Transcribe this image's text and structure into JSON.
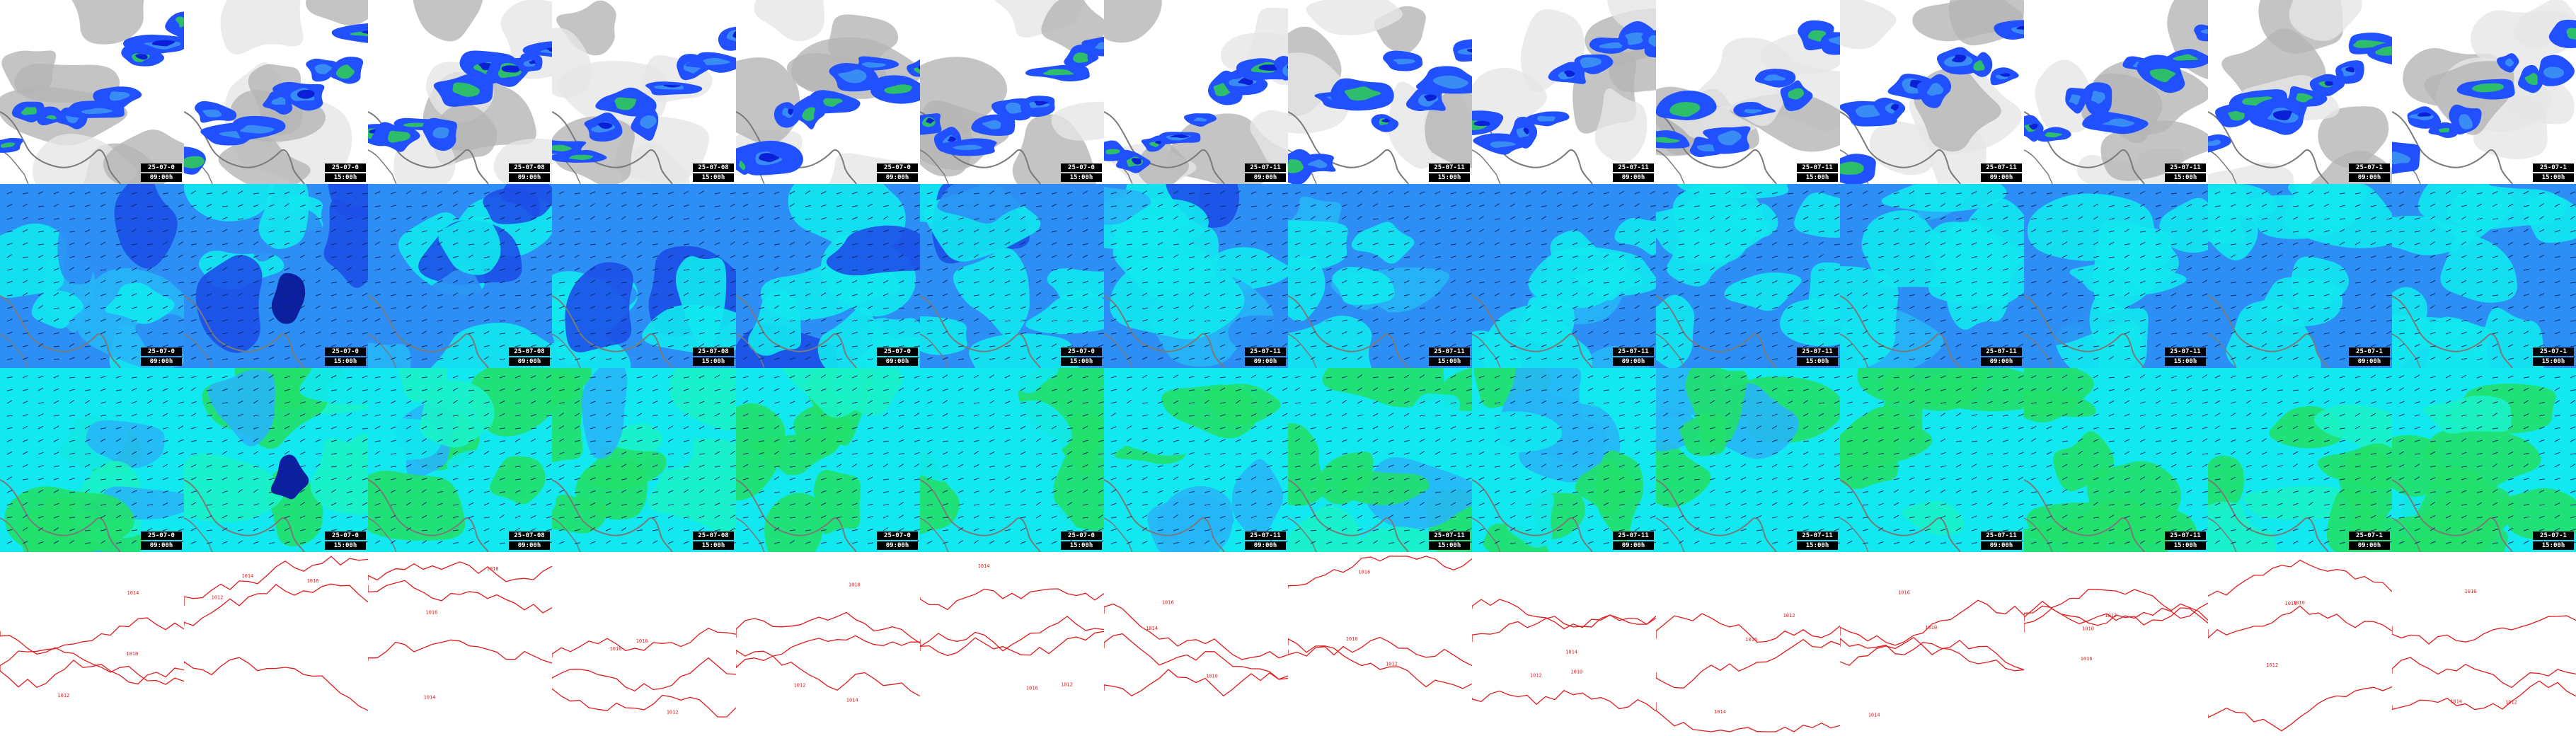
{
  "rows": [
    "precipitation",
    "wind-speed-upper",
    "wind-speed-lower",
    "pressure-contours"
  ],
  "frames": [
    {
      "date": "25-07-0",
      "time": "09:00h"
    },
    {
      "date": "25-07-0",
      "time": "15:00h"
    },
    {
      "date": "25-07-08",
      "time": "09:00h"
    },
    {
      "date": "25-07-08",
      "time": "15:00h"
    },
    {
      "date": "25-07-0",
      "time": "09:00h"
    },
    {
      "date": "25-07-0",
      "time": "15:00h"
    },
    {
      "date": "25-07-11",
      "time": "09:00h"
    },
    {
      "date": "25-07-11",
      "time": "15:00h"
    },
    {
      "date": "25-07-11",
      "time": "09:00h"
    },
    {
      "date": "25-07-11",
      "time": "15:00h"
    },
    {
      "date": "25-07-11",
      "time": "09:00h"
    },
    {
      "date": "25-07-11",
      "time": "15:00h"
    },
    {
      "date": "25-07-1",
      "time": "09:00h"
    },
    {
      "date": "25-07-1",
      "time": "15:00h"
    }
  ],
  "isobar_labels": [
    "1010",
    "1012",
    "1014",
    "1016"
  ],
  "colors": {
    "cloud_light": "#e6e6e6",
    "cloud_mid": "#b5b5b5",
    "precip_dark": "#0a1fd6",
    "precip_mid": "#2050ff",
    "precip_light": "#3a8cf5",
    "precip_green": "#2ebd6b",
    "wind_deep": "#1d4fe8",
    "wind_blue": "#2d8ff5",
    "wind_sky": "#27b6f7",
    "wind_cyan": "#12e8f0",
    "wind_aqua": "#1af2c8",
    "wind_green": "#22e06a",
    "wind_navy": "#0c1f9e",
    "coast": "#7a7a7a",
    "isobar": "#e11b1b"
  }
}
